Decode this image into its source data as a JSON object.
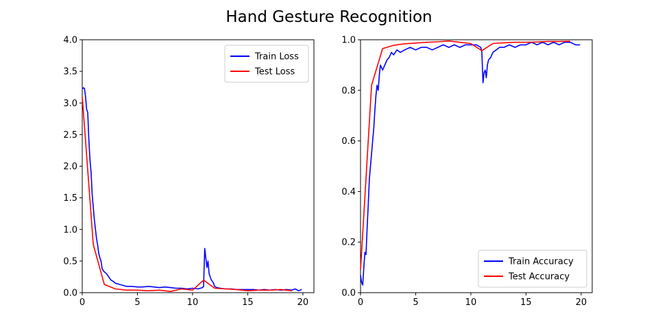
{
  "title": "Hand Gesture Recognition",
  "chart_data": [
    {
      "type": "line",
      "title": "",
      "xlabel": "",
      "ylabel": "",
      "xlim": [
        0,
        21
      ],
      "ylim": [
        0,
        4
      ],
      "xticks": [
        0,
        5,
        10,
        15,
        20
      ],
      "yticks": [
        0.0,
        0.5,
        1.0,
        1.5,
        2.0,
        2.5,
        3.0,
        3.5,
        4.0
      ],
      "legend_position": "top-right",
      "grid": false,
      "series": [
        {
          "name": "Train Loss",
          "color": "#0000ff",
          "x": [
            0,
            0.1,
            0.2,
            0.3,
            0.4,
            0.5,
            0.6,
            0.7,
            0.8,
            0.9,
            1.0,
            1.1,
            1.2,
            1.3,
            1.4,
            1.5,
            1.6,
            1.7,
            1.8,
            1.9,
            2.0,
            2.2,
            2.4,
            2.6,
            2.8,
            3.0,
            3.2,
            3.4,
            3.6,
            3.8,
            4.0,
            4.5,
            5.0,
            5.5,
            6.0,
            6.5,
            7.0,
            7.5,
            8.0,
            8.5,
            9.0,
            9.5,
            10.0,
            10.5,
            10.9,
            11.0,
            11.1,
            11.2,
            11.3,
            11.4,
            11.5,
            11.6,
            11.7,
            11.8,
            11.9,
            12.0,
            12.2,
            12.5,
            13.0,
            13.5,
            14.0,
            14.5,
            15.0,
            15.5,
            16.0,
            16.5,
            17.0,
            17.5,
            18.0,
            18.5,
            19.0,
            19.3,
            19.6,
            19.9
          ],
          "y": [
            3.22,
            3.24,
            3.23,
            3.1,
            2.9,
            2.85,
            2.4,
            2.1,
            1.9,
            1.55,
            1.35,
            1.15,
            1.0,
            0.85,
            0.75,
            0.62,
            0.55,
            0.5,
            0.38,
            0.35,
            0.33,
            0.3,
            0.25,
            0.2,
            0.18,
            0.15,
            0.14,
            0.13,
            0.12,
            0.11,
            0.1,
            0.1,
            0.09,
            0.09,
            0.1,
            0.09,
            0.08,
            0.09,
            0.08,
            0.07,
            0.07,
            0.06,
            0.07,
            0.06,
            0.08,
            0.1,
            0.7,
            0.55,
            0.4,
            0.5,
            0.3,
            0.25,
            0.2,
            0.18,
            0.15,
            0.1,
            0.08,
            0.07,
            0.06,
            0.06,
            0.05,
            0.05,
            0.05,
            0.05,
            0.04,
            0.05,
            0.04,
            0.05,
            0.04,
            0.05,
            0.04,
            0.06,
            0.03,
            0.05
          ]
        },
        {
          "name": "Test Loss",
          "color": "#ff0000",
          "x": [
            0,
            1,
            2,
            3,
            4,
            5,
            6,
            7,
            8,
            9,
            10,
            11,
            12,
            13,
            14,
            15,
            16,
            17,
            18,
            19
          ],
          "y": [
            3.1,
            0.76,
            0.13,
            0.06,
            0.04,
            0.04,
            0.03,
            0.04,
            0.02,
            0.06,
            0.04,
            0.2,
            0.07,
            0.06,
            0.05,
            0.03,
            0.04,
            0.04,
            0.05,
            0.03
          ]
        }
      ]
    },
    {
      "type": "line",
      "title": "",
      "xlabel": "",
      "ylabel": "",
      "xlim": [
        0,
        21
      ],
      "ylim": [
        0,
        1
      ],
      "xticks": [
        0,
        5,
        10,
        15,
        20
      ],
      "yticks": [
        0.0,
        0.2,
        0.4,
        0.6,
        0.8,
        1.0
      ],
      "legend_position": "bottom-right",
      "grid": false,
      "series": [
        {
          "name": "Train Accuracy",
          "color": "#0000ff",
          "x": [
            0,
            0.1,
            0.2,
            0.3,
            0.4,
            0.5,
            0.6,
            0.7,
            0.8,
            0.9,
            1.0,
            1.1,
            1.2,
            1.3,
            1.4,
            1.5,
            1.6,
            1.7,
            1.8,
            1.9,
            2.0,
            2.2,
            2.4,
            2.6,
            2.8,
            3.0,
            3.3,
            3.6,
            4.0,
            4.5,
            5.0,
            5.5,
            6.0,
            6.5,
            7.0,
            7.5,
            8.0,
            8.5,
            9.0,
            9.5,
            10.0,
            10.5,
            10.9,
            11.0,
            11.1,
            11.2,
            11.3,
            11.4,
            11.5,
            11.6,
            11.8,
            12.0,
            12.3,
            12.6,
            13.0,
            13.5,
            14.0,
            14.5,
            15.0,
            15.5,
            16.0,
            16.5,
            17.0,
            17.5,
            18.0,
            18.5,
            19.0,
            19.5,
            19.9
          ],
          "y": [
            0.07,
            0.04,
            0.03,
            0.1,
            0.16,
            0.15,
            0.26,
            0.35,
            0.45,
            0.5,
            0.55,
            0.6,
            0.65,
            0.72,
            0.78,
            0.82,
            0.8,
            0.86,
            0.9,
            0.89,
            0.88,
            0.9,
            0.92,
            0.93,
            0.95,
            0.94,
            0.96,
            0.95,
            0.96,
            0.97,
            0.96,
            0.97,
            0.97,
            0.96,
            0.97,
            0.98,
            0.97,
            0.98,
            0.97,
            0.98,
            0.98,
            0.98,
            0.97,
            0.95,
            0.83,
            0.87,
            0.88,
            0.85,
            0.9,
            0.92,
            0.93,
            0.95,
            0.96,
            0.97,
            0.97,
            0.98,
            0.97,
            0.98,
            0.98,
            0.99,
            0.98,
            0.99,
            0.98,
            0.99,
            0.98,
            0.99,
            0.99,
            0.98,
            0.98
          ]
        },
        {
          "name": "Test Accuracy",
          "color": "#ff0000",
          "x": [
            0,
            1,
            2,
            3,
            4,
            5,
            6,
            7,
            8,
            9,
            10,
            11,
            12,
            13,
            14,
            15,
            16,
            17,
            18,
            19
          ],
          "y": [
            0.09,
            0.82,
            0.965,
            0.978,
            0.984,
            0.987,
            0.99,
            0.992,
            0.995,
            0.99,
            0.985,
            0.957,
            0.985,
            0.988,
            0.99,
            0.99,
            0.991,
            0.993,
            0.993,
            0.994
          ]
        }
      ]
    }
  ]
}
